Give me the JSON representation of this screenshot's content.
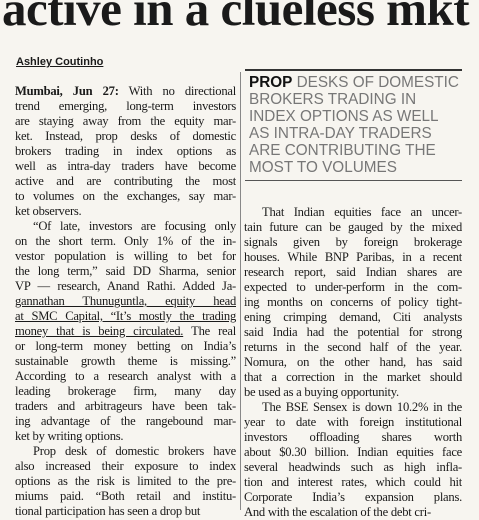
{
  "headline": "active in a clueless mkt",
  "byline": "Ashley Coutinho",
  "pull_quote": {
    "lead": "PROP",
    "lines": [
      " DESKS OF DOMESTIC",
      "BROKERS TRADING IN",
      "INDEX OPTIONS AS WELL",
      "AS INTRA-DAY TRADERS",
      "ARE CONTRIBUTING THE",
      "MOST TO VOLUMES"
    ]
  },
  "left_column": [
    {
      "lead": "Mumbai, Jun 27:",
      "lines": [
        " With no directional",
        "trend emerging, long-term investors",
        "are staying away from the equity mar-",
        "ket. Instead, prop desks of domestic",
        "brokers trading in index options as",
        "well as intra-day traders have become",
        "active and are contributing the most",
        "to volumes on the exchanges, say mar-",
        "ket observers."
      ]
    },
    {
      "lines": [
        "“Of late, investors are focusing only",
        "on the short term. Only 1% of the in-",
        "vestor population is willing to bet for",
        "the long term,” said DD Sharma, senior",
        "VP — research, Anand Rathi. Added Ja-",
        {
          "underlined": "gannathan Thunuguntla, equity head"
        },
        {
          "underlined": "at SMC Capital, “It’s mostly the trading"
        },
        {
          "underlined": "money that is being circulated.",
          "rest": " The real"
        },
        "or long-term money betting on India’s",
        "sustainable growth theme is missing.”",
        "According to a research analyst with a",
        "leading brokerage firm, many day",
        "traders and arbitrageurs have been tak-",
        "ing advantage of the rangebound mar-",
        "ket by writing options."
      ]
    },
    {
      "lines": [
        "Prop desk of domestic brokers have",
        "also increased their exposure to index",
        "options as the risk is limited to the pre-",
        "miums paid. “Both retail and institu-",
        "tional participation has seen a drop but"
      ]
    }
  ],
  "right_column": [
    {
      "lines": [
        "That Indian equities face an uncer-",
        "tain future can be gauged by the mixed",
        "signals given by foreign brokerage",
        "houses. While BNP Paribas, in a recent",
        "research report, said Indian shares are",
        "expected to under-perform in the com-",
        "ing months on concerns of policy tight-",
        "ening crimping demand, Citi analysts",
        "said India had the potential for strong",
        "returns in the second half of the year.",
        "Nomura, on the other hand, has said",
        "that a correction in the market should",
        "be used as a buying opportunity."
      ]
    },
    {
      "lines": [
        "The BSE Sensex is down 10.2% in the",
        "year to date with foreign institutional",
        "investors offloading shares worth",
        "about $0.30 billion. Indian equities face",
        "several headwinds such as high infla-",
        "tion and interest rates, which could hit",
        "Corporate India’s expansion plans.",
        "And with the escalation of the debt cri-"
      ]
    }
  ]
}
